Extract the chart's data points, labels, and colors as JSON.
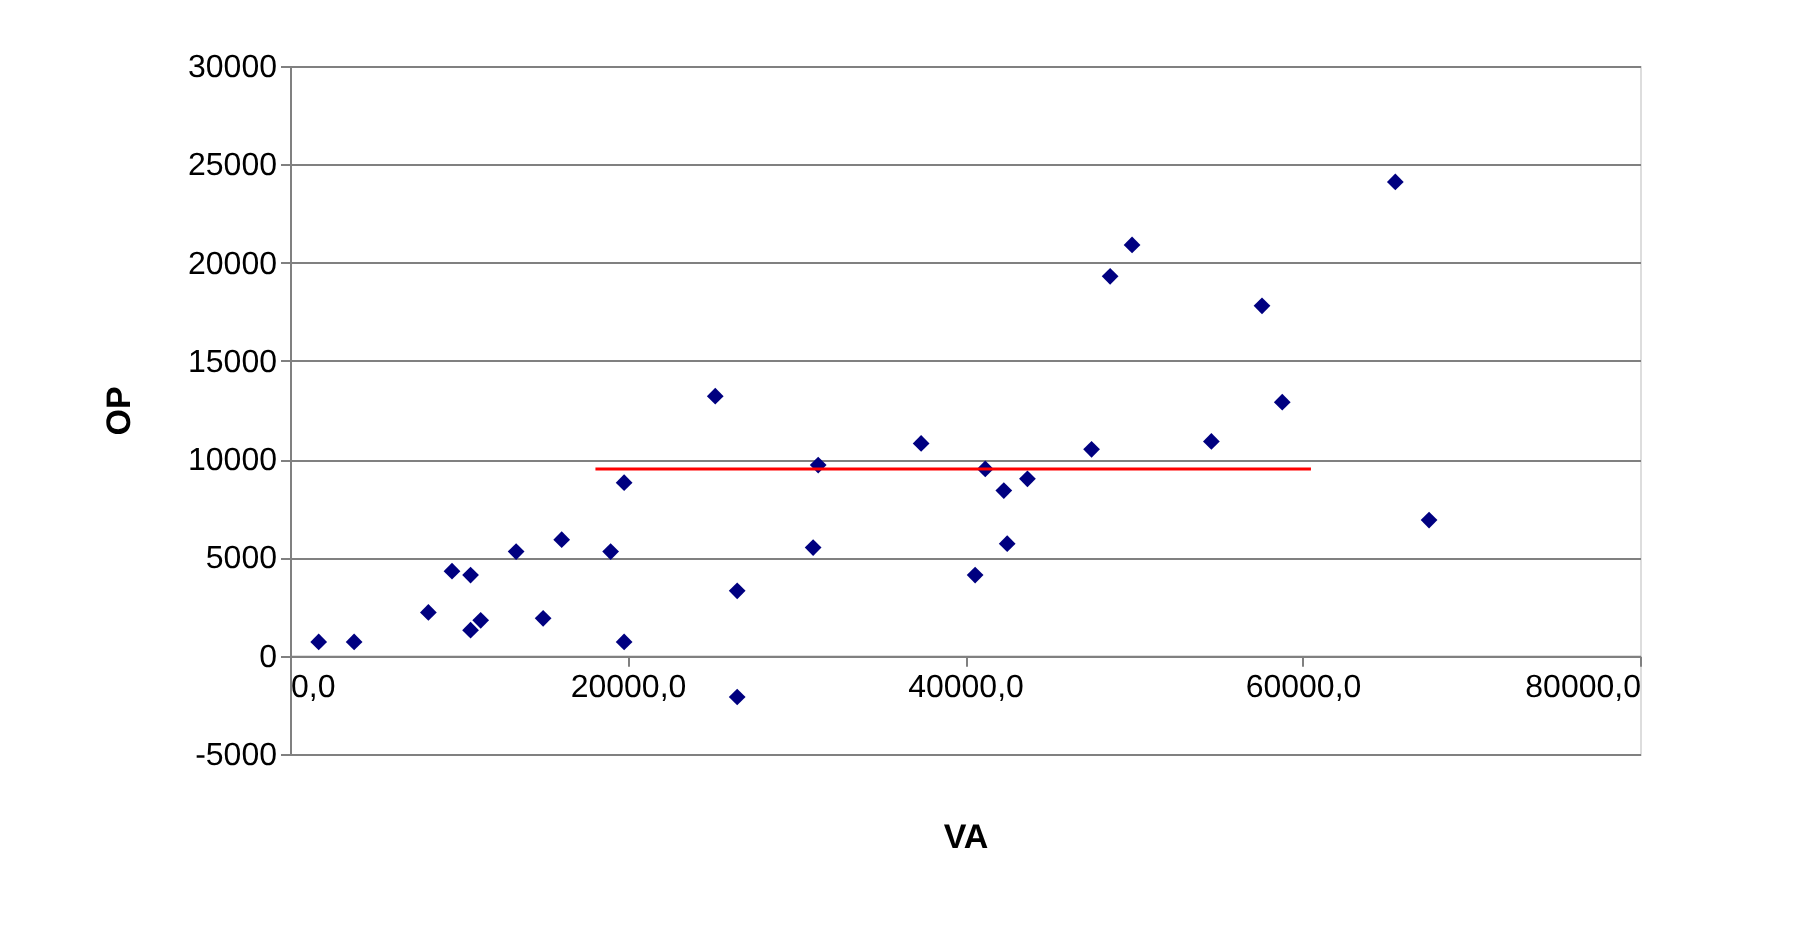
{
  "chart_data": {
    "type": "scatter",
    "xlabel": "VA",
    "ylabel": "OP",
    "marker": "diamond",
    "grid": "y",
    "legend": false,
    "xlim": [
      0,
      80000
    ],
    "xticks": [
      {
        "value": 0,
        "label": "0,0"
      },
      {
        "value": 20000,
        "label": "20000,0"
      },
      {
        "value": 40000,
        "label": "40000,0"
      },
      {
        "value": 60000,
        "label": "60000,0"
      },
      {
        "value": 80000,
        "label": "80000,0"
      }
    ],
    "ylim": [
      -5000,
      30000
    ],
    "yticks": [
      {
        "value": -5000,
        "label": "-5000"
      },
      {
        "value": 0,
        "label": "0"
      },
      {
        "value": 5000,
        "label": "5000"
      },
      {
        "value": 10000,
        "label": "10000"
      },
      {
        "value": 15000,
        "label": "15000"
      },
      {
        "value": 20000,
        "label": "20000"
      },
      {
        "value": 25000,
        "label": "25000"
      },
      {
        "value": 30000,
        "label": "30000"
      }
    ],
    "series": [
      {
        "color": "#000080",
        "x": [
          1700,
          3800,
          8200,
          9600,
          10700,
          10700,
          11300,
          13400,
          15000,
          16100,
          19000,
          19800,
          19800,
          25200,
          26500,
          26500,
          31000,
          31300,
          37400,
          40600,
          41200,
          42300,
          42500,
          43700,
          47500,
          48600,
          49900,
          54600,
          57600,
          58800,
          65500,
          67500
        ],
        "values": [
          700,
          700,
          2200,
          4300,
          4100,
          1300,
          1800,
          5300,
          1900,
          5900,
          5300,
          8800,
          700,
          13200,
          3300,
          -2100,
          5500,
          9700,
          10800,
          4100,
          9500,
          8400,
          5700,
          9000,
          10500,
          19300,
          20900,
          10900,
          17800,
          12900,
          24100,
          6900
        ]
      },
      {
        "type": "line",
        "color": "#ff0000",
        "marker": "none",
        "line_style": "solid",
        "x": [
          18100,
          60500
        ],
        "values": [
          9500,
          9500
        ]
      }
    ]
  }
}
